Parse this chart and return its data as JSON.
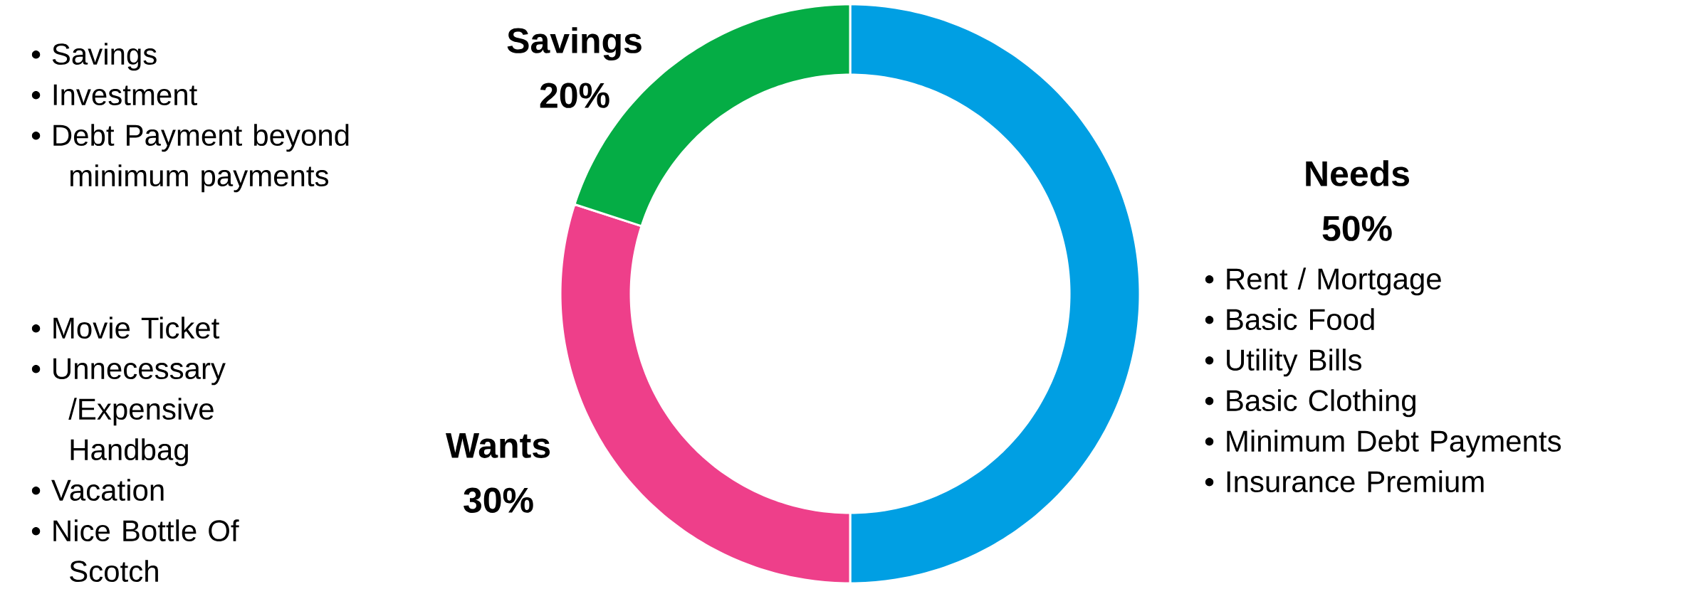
{
  "chart_data": {
    "type": "donut",
    "categories": [
      "Needs",
      "Wants",
      "Savings"
    ],
    "values": [
      50,
      30,
      20
    ],
    "value_labels": [
      "50%",
      "30%",
      "20%"
    ],
    "colors": [
      "#009fe3",
      "#ee3f8a",
      "#05ad45"
    ],
    "annotations": [
      "• Savings",
      "• Investment",
      "• Debt Payment beyond minimum payments",
      "• Movie Ticket",
      "• Unnecessary /Expensive Handbag",
      "• Vacation",
      "• Nice Bottle Of Scotch",
      "• Rent / Mortgage",
      "• Basic Food",
      "• Utility Bills",
      "• Basic Clothing",
      "• Minimum Debt Payments",
      "• Insurance Premium"
    ]
  }
}
